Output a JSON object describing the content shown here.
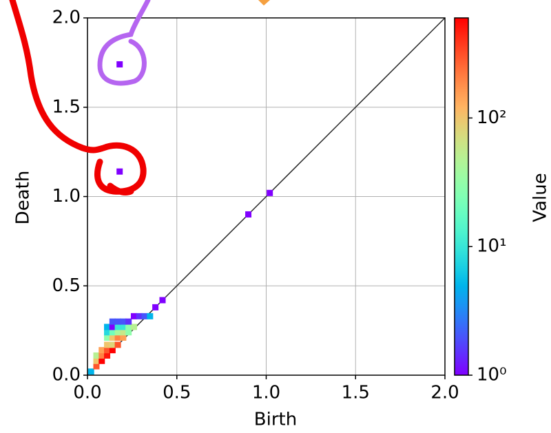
{
  "chart_data": {
    "type": "heatmap",
    "x_label": "Birth",
    "y_label": "Death",
    "colorbar_label": "Value",
    "xlim": [
      0,
      2
    ],
    "ylim": [
      0,
      2
    ],
    "xticks": [
      {
        "value": 0,
        "label": "0.0"
      },
      0.5,
      {
        "value": 1,
        "label": "1.0"
      },
      1.5,
      {
        "value": 2,
        "label": "2.0"
      }
    ],
    "yticks": [
      {
        "value": 0,
        "label": "0.0"
      },
      0.5,
      {
        "value": 1,
        "label": "1.0"
      },
      1.5,
      {
        "value": 2,
        "label": "2.0"
      }
    ],
    "grid": true,
    "colormap": "rainbow",
    "color_scale": "log",
    "clim": [
      1,
      600
    ],
    "cticks": [
      {
        "value": 1,
        "label": "10⁰"
      },
      {
        "value": 10,
        "label": "10¹"
      },
      {
        "value": 100,
        "label": "10²"
      }
    ],
    "x": [
      0.02,
      0.05,
      0.05,
      0.08,
      0.05,
      0.08,
      0.11,
      0.08,
      0.11,
      0.14,
      0.11,
      0.14,
      0.17,
      0.11,
      0.14,
      0.17,
      0.2,
      0.11,
      0.14,
      0.17,
      0.2,
      0.23,
      0.11,
      0.14,
      0.17,
      0.2,
      0.23,
      0.26,
      0.14,
      0.17,
      0.2,
      0.23,
      0.26,
      0.29,
      0.32,
      0.35,
      0.38,
      0.42,
      0.9,
      1.02,
      0.18,
      0.18
    ],
    "y": [
      0.02,
      0.05,
      0.08,
      0.08,
      0.11,
      0.11,
      0.11,
      0.14,
      0.14,
      0.14,
      0.17,
      0.17,
      0.17,
      0.21,
      0.21,
      0.21,
      0.21,
      0.24,
      0.24,
      0.24,
      0.24,
      0.24,
      0.27,
      0.27,
      0.27,
      0.27,
      0.27,
      0.27,
      0.3,
      0.3,
      0.3,
      0.3,
      0.33,
      0.33,
      0.33,
      0.33,
      0.38,
      0.42,
      0.9,
      1.02,
      1.14,
      1.74
    ],
    "values": [
      5,
      300,
      100,
      600,
      50,
      200,
      500,
      150,
      300,
      600,
      100,
      80,
      300,
      30,
      100,
      200,
      150,
      8,
      20,
      40,
      60,
      30,
      5,
      1,
      10,
      10,
      30,
      50,
      2,
      2,
      2,
      1.5,
      1,
      1.5,
      2,
      5,
      1,
      1,
      1,
      1,
      1,
      1
    ]
  }
}
